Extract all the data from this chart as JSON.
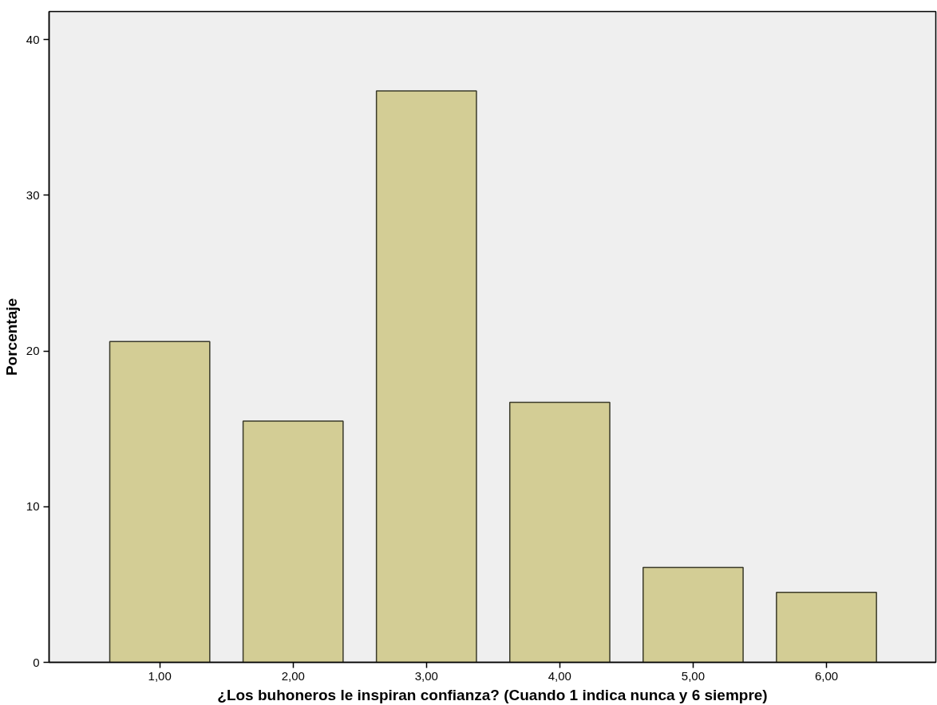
{
  "chart_data": {
    "type": "bar",
    "xlabel": "¿Los buhoneros le inspiran confianza? (Cuando 1 indica nunca y 6 siempre)",
    "ylabel": "Porcentaje",
    "categories": [
      "1,00",
      "2,00",
      "3,00",
      "4,00",
      "5,00",
      "6,00"
    ],
    "values": [
      20.6,
      15.5,
      36.7,
      16.7,
      6.1,
      4.5
    ],
    "color": "#d3cd95",
    "ylim": [
      0,
      41.8
    ],
    "yticks": [
      0,
      10,
      20,
      30,
      40
    ],
    "grid": false
  }
}
